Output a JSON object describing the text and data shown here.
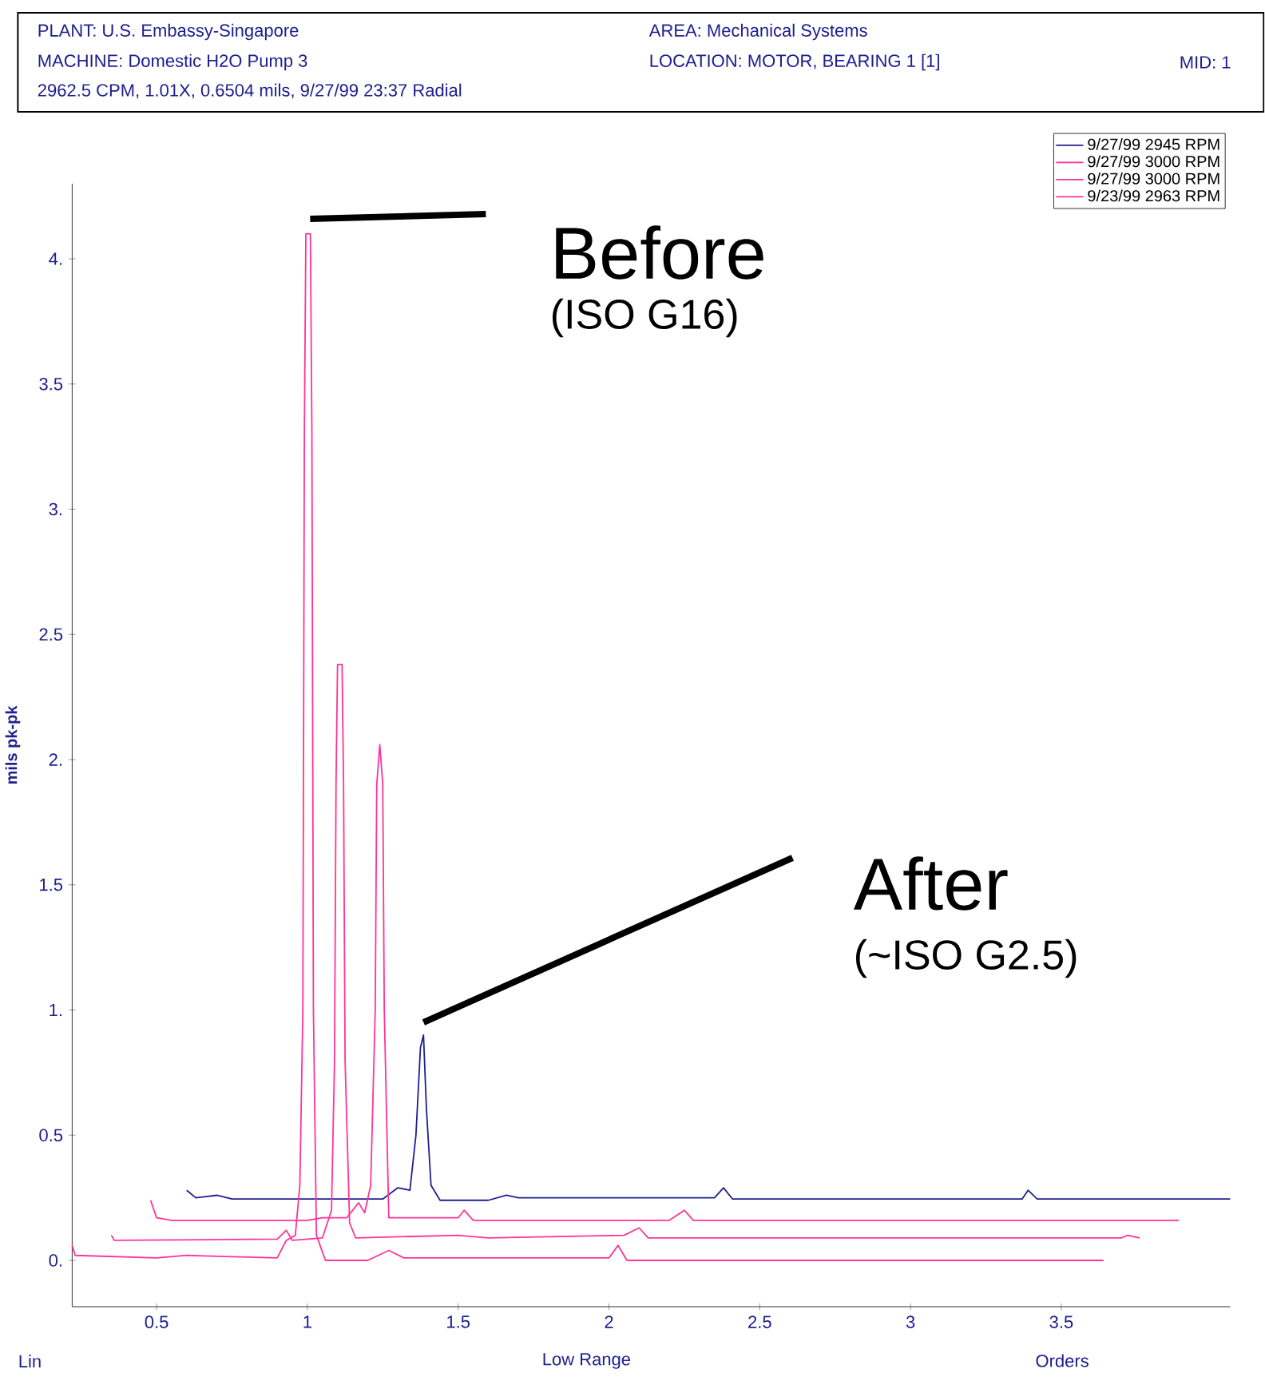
{
  "chart_data": {
    "type": "line",
    "ylabel": "mils pk-pk",
    "xlabel": "Orders",
    "xlim": [
      0.22,
      4.06
    ],
    "ylim": [
      -0.185,
      4.3
    ],
    "xticks": [
      0.5,
      1,
      1.5,
      2,
      2.5,
      3,
      3.5
    ],
    "yticks": [
      {
        "value": 0,
        "label": "0."
      },
      {
        "value": 0.5,
        "label": "0.5"
      },
      {
        "value": 1,
        "label": "1."
      },
      {
        "value": 1.5,
        "label": "1.5"
      },
      {
        "value": 2,
        "label": "2."
      },
      {
        "value": 2.5,
        "label": "2.5"
      },
      {
        "value": 3,
        "label": "3."
      },
      {
        "value": 3.5,
        "label": "3.5"
      },
      {
        "value": 4,
        "label": "4."
      }
    ],
    "legend": "top right",
    "series": [
      {
        "name": "9/27/99   2945 RPM",
        "color": "#1f1f8f",
        "x": [
          0.6,
          0.63,
          0.7,
          0.75,
          1.25,
          1.3,
          1.34,
          1.36,
          1.375,
          1.385,
          1.395,
          1.41,
          1.44,
          1.6,
          1.66,
          1.7,
          2.35,
          2.38,
          2.41,
          2.95,
          3.37,
          3.39,
          3.42,
          4.06
        ],
        "values": [
          0.28,
          0.25,
          0.26,
          0.245,
          0.245,
          0.29,
          0.28,
          0.5,
          0.85,
          0.9,
          0.6,
          0.3,
          0.24,
          0.24,
          0.26,
          0.25,
          0.25,
          0.29,
          0.245,
          0.245,
          0.245,
          0.28,
          0.245,
          0.245
        ]
      },
      {
        "name": "9/27/99   3000 RPM",
        "color": "#ff3399",
        "x": [
          0.48,
          0.5,
          0.55,
          1.0,
          1.05,
          1.13,
          1.17,
          1.19,
          1.21,
          1.225,
          1.23,
          1.24,
          1.25,
          1.255,
          1.27,
          1.5,
          1.52,
          1.55,
          2.2,
          2.25,
          2.28,
          3.85,
          3.89
        ],
        "values": [
          0.24,
          0.17,
          0.16,
          0.16,
          0.17,
          0.17,
          0.23,
          0.19,
          0.3,
          1.0,
          1.9,
          2.06,
          1.9,
          1.0,
          0.17,
          0.17,
          0.2,
          0.16,
          0.16,
          0.2,
          0.16,
          0.16,
          0.16
        ]
      },
      {
        "name": "9/27/99   3000 RPM",
        "color": "#ff3399",
        "x": [
          0.35,
          0.36,
          0.9,
          0.93,
          0.95,
          1.05,
          1.08,
          1.09,
          1.095,
          1.1,
          1.115,
          1.12,
          1.125,
          1.14,
          1.16,
          1.5,
          1.6,
          2.05,
          2.1,
          2.13,
          3.7,
          3.72,
          3.76
        ],
        "values": [
          0.1,
          0.08,
          0.085,
          0.12,
          0.08,
          0.09,
          0.2,
          0.8,
          1.9,
          2.38,
          2.38,
          1.9,
          0.8,
          0.15,
          0.09,
          0.1,
          0.09,
          0.1,
          0.13,
          0.09,
          0.09,
          0.1,
          0.09
        ]
      },
      {
        "name": "9/23/99   2963 RPM",
        "color": "#ff3399",
        "x": [
          0.22,
          0.23,
          0.5,
          0.6,
          0.9,
          0.93,
          0.96,
          0.975,
          0.985,
          0.99,
          0.995,
          1.01,
          1.015,
          1.02,
          1.03,
          1.06,
          1.2,
          1.27,
          1.32,
          2.0,
          2.03,
          2.06,
          2.5,
          3.64
        ],
        "values": [
          0.06,
          0.02,
          0.01,
          0.02,
          0.01,
          0.08,
          0.1,
          0.3,
          1.0,
          3.3,
          4.1,
          4.1,
          3.3,
          1.0,
          0.1,
          0.0,
          0.0,
          0.04,
          0.01,
          0.01,
          0.06,
          0.0,
          0.0,
          0.0
        ]
      }
    ],
    "annotations": [
      "PLANT: U.S. Embassy-Singapore",
      "MACHINE: Domestic H2O Pump 3",
      "2962.5 CPM, 1.01X, 0.6504 mils, 9/27/99 23:37  Radial",
      "AREA: Mechanical Systems",
      "LOCATION: MOTOR, BEARING 1 [1]",
      "MID: 1",
      "Before",
      "(ISO G16)",
      "After",
      "(~ISO G2.5)",
      "Lin",
      "Low Range"
    ]
  }
}
